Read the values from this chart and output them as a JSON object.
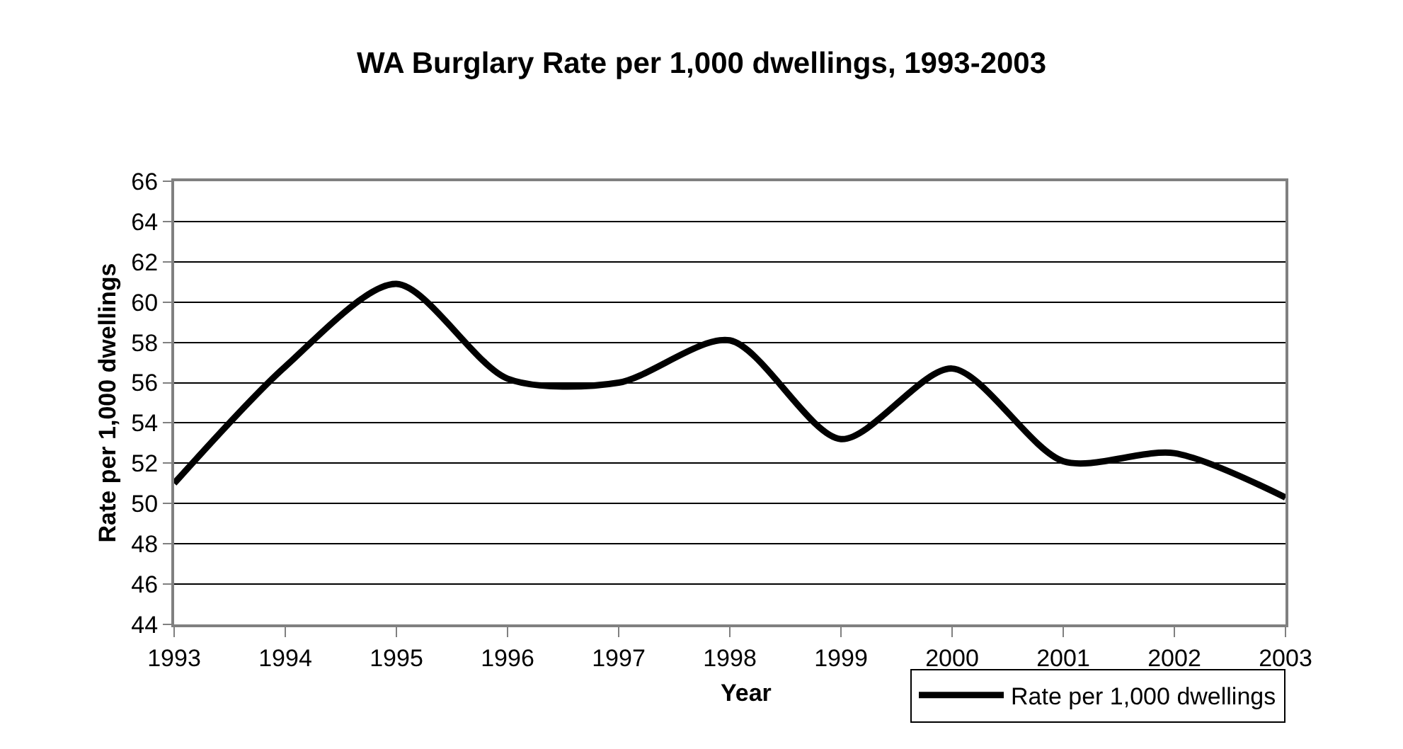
{
  "chart_data": {
    "type": "line",
    "title": "WA Burglary Rate per 1,000 dwellings, 1993-2003",
    "xlabel": "Year",
    "ylabel": "Rate per 1,000 dwellings",
    "x": [
      1993,
      1994,
      1995,
      1996,
      1997,
      1998,
      1999,
      2000,
      2001,
      2002,
      2003
    ],
    "series": [
      {
        "name": "Rate per 1,000 dwellings",
        "color": "#000000",
        "values": [
          51.0,
          56.8,
          60.9,
          56.2,
          56.0,
          58.1,
          53.2,
          56.7,
          52.1,
          52.5,
          50.3
        ]
      }
    ],
    "xlim": [
      1993,
      2003
    ],
    "xticks": [
      1993,
      1994,
      1995,
      1996,
      1997,
      1998,
      1999,
      2000,
      2001,
      2002,
      2003
    ],
    "ylim": [
      44,
      66
    ],
    "yticks": [
      44,
      46,
      48,
      50,
      52,
      54,
      56,
      58,
      60,
      62,
      64,
      66
    ],
    "grid": "y",
    "legend": "bottom right",
    "marker": "none",
    "line_style": "solid"
  }
}
